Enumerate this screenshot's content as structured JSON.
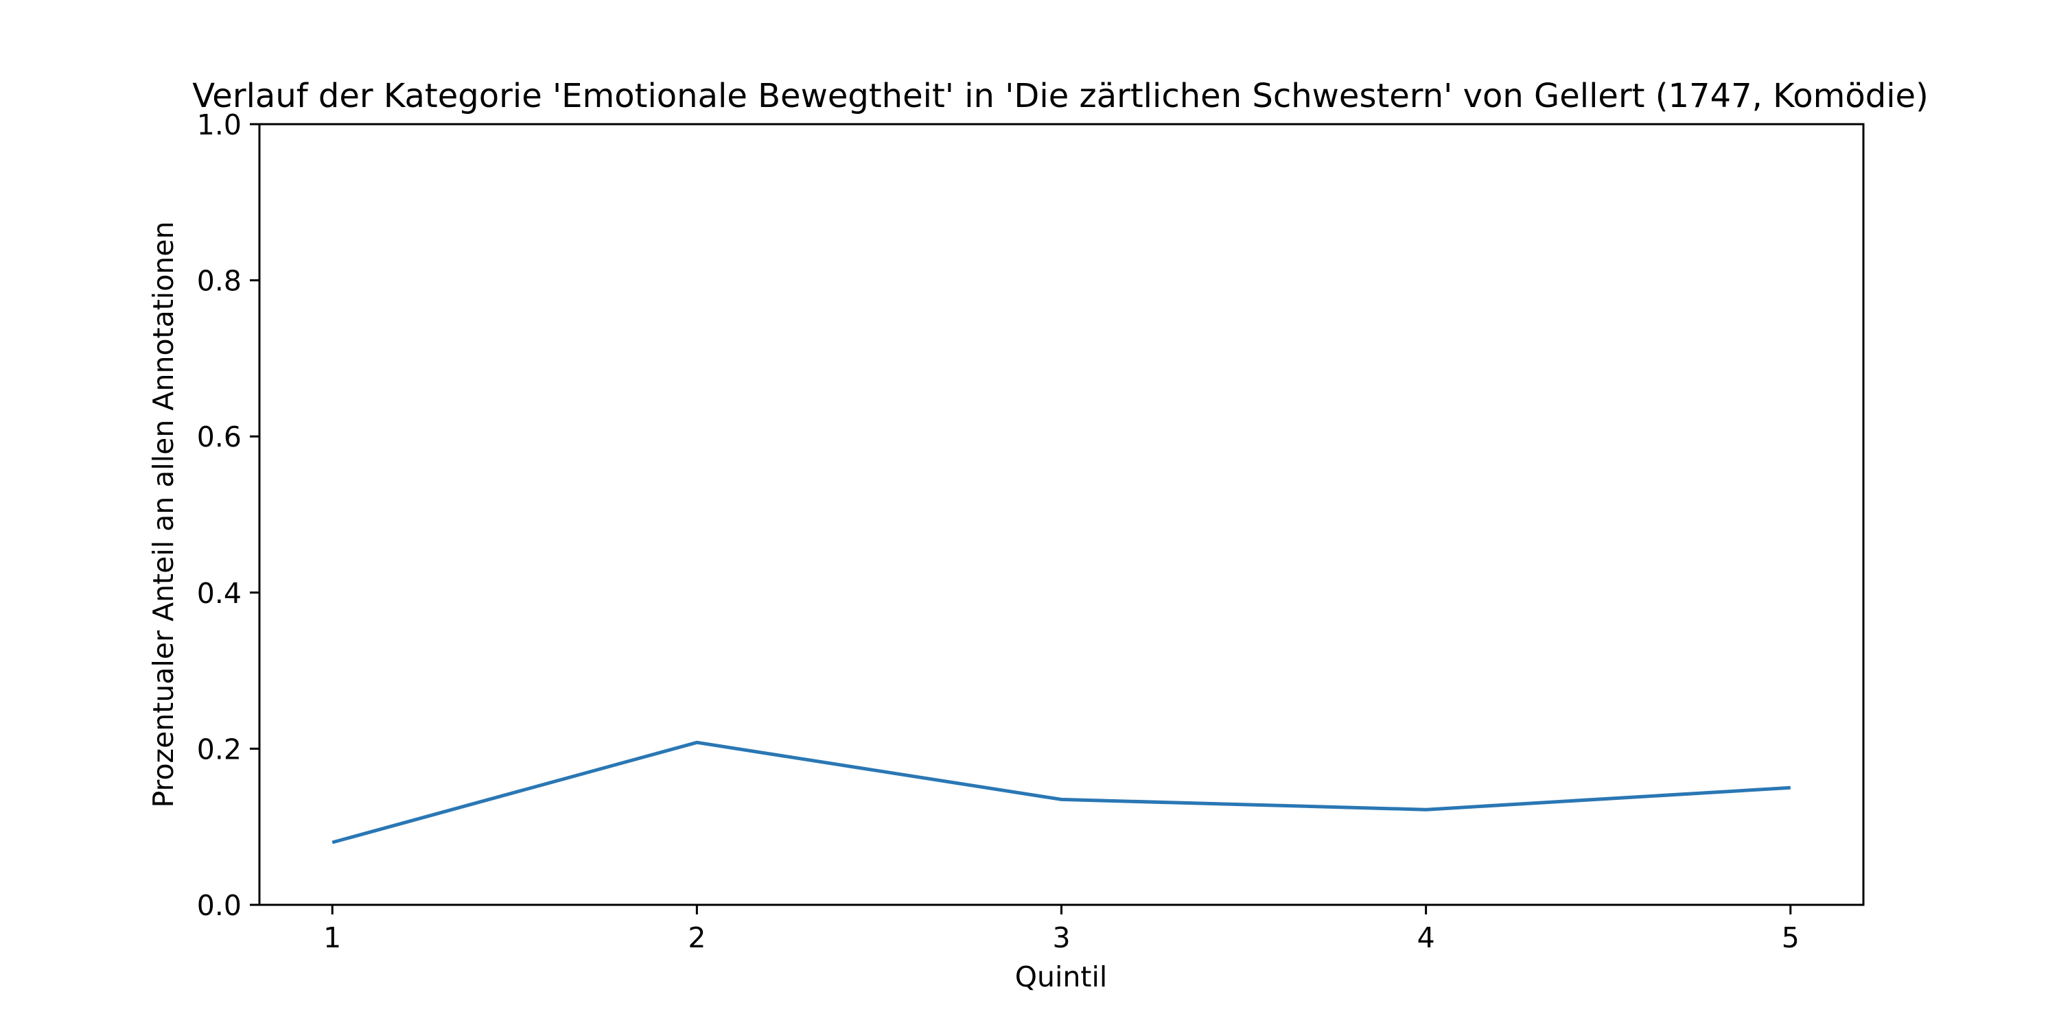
{
  "chart_data": {
    "type": "line",
    "title": "Verlauf der Kategorie 'Emotionale Bewegtheit' in 'Die zärtlichen Schwestern' von Gellert (1747, Komödie)",
    "xlabel": "Quintil",
    "ylabel": "Prozentualer Anteil an allen Annotationen",
    "x": [
      1,
      2,
      3,
      4,
      5
    ],
    "x_tick_labels": [
      "1",
      "2",
      "3",
      "4",
      "5"
    ],
    "xlim": [
      0.8,
      5.2
    ],
    "ylim": [
      0.0,
      1.0
    ],
    "y_ticks": [
      0.0,
      0.2,
      0.4,
      0.6,
      0.8,
      1.0
    ],
    "y_tick_labels": [
      "0.0",
      "0.2",
      "0.4",
      "0.6",
      "0.8",
      "1.0"
    ],
    "grid": false,
    "series": [
      {
        "values": [
          0.08,
          0.208,
          0.135,
          0.122,
          0.15
        ],
        "color": "#2a77b4"
      }
    ]
  }
}
